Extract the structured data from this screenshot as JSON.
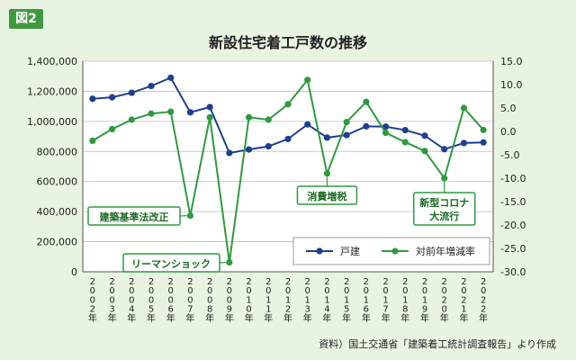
{
  "figure_tag": "図2",
  "source_note": "資料）国土交通省「建築着工統計調査報告」より作成",
  "colors": {
    "blue": "#1f3f8f",
    "green": "#2f9a3f",
    "background": "#e9f3e1",
    "plot_bg": "#ffffff"
  },
  "chart_data": {
    "type": "line",
    "title": "新設住宅着工戸数の推移",
    "categories": [
      "2002年",
      "2003年",
      "2004年",
      "2005年",
      "2006年",
      "2007年",
      "2008年",
      "2009年",
      "2010年",
      "2011年",
      "2012年",
      "2013年",
      "2014年",
      "2015年",
      "2016年",
      "2017年",
      "2018年",
      "2019年",
      "2020年",
      "2021年",
      "2022年"
    ],
    "y_left": {
      "ticks": [
        "0",
        "200,000",
        "400,000",
        "600,000",
        "800,000",
        "1,000,000",
        "1,200,000",
        "1,400,000"
      ],
      "range": [
        0,
        1400000
      ]
    },
    "y_right": {
      "ticks": [
        "15.0",
        "10.0",
        "5.0",
        "0.0",
        "-5.0",
        "-10.0",
        "-15.0",
        "-20.0",
        "-25.0",
        "-30.0"
      ],
      "range": [
        -30,
        15
      ]
    },
    "series": [
      {
        "name": "戸建",
        "axis": "left",
        "color": "#1f3f8f",
        "values": [
          1150000,
          1160000,
          1190000,
          1235000,
          1290000,
          1060000,
          1095000,
          790000,
          813000,
          834000,
          883000,
          980000,
          892000,
          909000,
          967000,
          965000,
          942000,
          905000,
          815000,
          856000,
          860000
        ]
      },
      {
        "name": "対前年増減率",
        "axis": "right",
        "color": "#2f9a3f",
        "values": [
          -2.0,
          0.5,
          2.5,
          3.8,
          4.2,
          -18.0,
          3.0,
          -28.0,
          3.0,
          2.5,
          5.8,
          11.0,
          -9.0,
          2.0,
          6.3,
          -0.3,
          -2.3,
          -4.2,
          -10.0,
          5.0,
          0.3
        ]
      }
    ],
    "annotations": [
      {
        "text": "建築基準法改正",
        "index": 5
      },
      {
        "text": "リーマンショック",
        "index": 7
      },
      {
        "text": "消費増税",
        "index": 12
      },
      {
        "text": "新型コロナ",
        "text2": "大流行",
        "index": 18
      }
    ],
    "legend_position": "bottom-right"
  }
}
